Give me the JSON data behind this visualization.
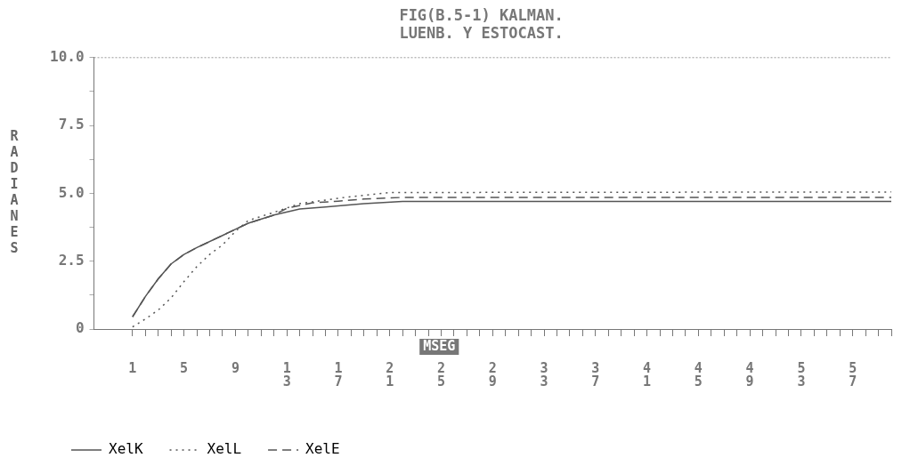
{
  "chart_data": {
    "type": "line",
    "title": "FIG(B.5-1) KALMAN.",
    "subtitle": "LUENB. Y ESTOCAST.",
    "xlabel": "MSEG",
    "ylabel": "RADIANES",
    "series": [
      {
        "name": "XelK",
        "color": "#555555",
        "line_style": "solid",
        "x": [
          1,
          2,
          3,
          4,
          5,
          6,
          8,
          10,
          12,
          14,
          16,
          19,
          22,
          60
        ],
        "values": [
          0.45,
          1.2,
          1.85,
          2.4,
          2.75,
          3.0,
          3.45,
          3.9,
          4.2,
          4.42,
          4.5,
          4.62,
          4.7,
          4.7
        ]
      },
      {
        "name": "XelL",
        "color": "#555555",
        "line_style": "dotted",
        "x": [
          1,
          2,
          3,
          4,
          5,
          6,
          7,
          8,
          9,
          10,
          12,
          14,
          17,
          19,
          21,
          60
        ],
        "values": [
          0.08,
          0.37,
          0.7,
          1.15,
          1.75,
          2.3,
          2.75,
          3.1,
          3.6,
          4.0,
          4.3,
          4.62,
          4.82,
          4.93,
          5.03,
          5.05
        ]
      },
      {
        "name": "XelE",
        "color": "#555555",
        "line_style": "dashed",
        "x": [
          1,
          2,
          3,
          4,
          5,
          6,
          8,
          10,
          12,
          13,
          15,
          17,
          19,
          22,
          60
        ],
        "values": [
          0.45,
          1.2,
          1.85,
          2.4,
          2.75,
          3.0,
          3.45,
          3.9,
          4.2,
          4.45,
          4.65,
          4.71,
          4.79,
          4.85,
          4.85
        ]
      }
    ],
    "xlim": [
      -2,
      60
    ],
    "xticks": [
      {
        "value": 1,
        "label": "1"
      },
      {
        "value": 2,
        "label": null
      },
      {
        "value": 3,
        "label": null
      },
      {
        "value": 4,
        "label": null
      },
      {
        "value": 5,
        "label": "5"
      },
      {
        "value": 6,
        "label": null
      },
      {
        "value": 7,
        "label": null
      },
      {
        "value": 8,
        "label": null
      },
      {
        "value": 9,
        "label": "9"
      },
      {
        "value": 10,
        "label": null
      },
      {
        "value": 11,
        "label": null
      },
      {
        "value": 12,
        "label": null
      },
      {
        "value": 13,
        "label": "13"
      },
      {
        "value": 14,
        "label": null
      },
      {
        "value": 15,
        "label": null
      },
      {
        "value": 16,
        "label": null
      },
      {
        "value": 17,
        "label": "17"
      },
      {
        "value": 18,
        "label": null
      },
      {
        "value": 19,
        "label": null
      },
      {
        "value": 20,
        "label": null
      },
      {
        "value": 21,
        "label": "21"
      },
      {
        "value": 22,
        "label": null
      },
      {
        "value": 23,
        "label": null
      },
      {
        "value": 24,
        "label": null
      },
      {
        "value": 25,
        "label": "25"
      },
      {
        "value": 26,
        "label": null
      },
      {
        "value": 27,
        "label": null
      },
      {
        "value": 28,
        "label": null
      },
      {
        "value": 29,
        "label": "29"
      },
      {
        "value": 30,
        "label": null
      },
      {
        "value": 31,
        "label": null
      },
      {
        "value": 32,
        "label": null
      },
      {
        "value": 33,
        "label": "33"
      },
      {
        "value": 34,
        "label": null
      },
      {
        "value": 35,
        "label": null
      },
      {
        "value": 36,
        "label": null
      },
      {
        "value": 37,
        "label": "37"
      },
      {
        "value": 38,
        "label": null
      },
      {
        "value": 39,
        "label": null
      },
      {
        "value": 40,
        "label": null
      },
      {
        "value": 41,
        "label": "41"
      },
      {
        "value": 42,
        "label": null
      },
      {
        "value": 43,
        "label": null
      },
      {
        "value": 44,
        "label": null
      },
      {
        "value": 45,
        "label": "45"
      },
      {
        "value": 46,
        "label": null
      },
      {
        "value": 47,
        "label": null
      },
      {
        "value": 48,
        "label": null
      },
      {
        "value": 49,
        "label": "49"
      },
      {
        "value": 50,
        "label": null
      },
      {
        "value": 51,
        "label": null
      },
      {
        "value": 52,
        "label": null
      },
      {
        "value": 53,
        "label": "53"
      },
      {
        "value": 54,
        "label": null
      },
      {
        "value": 55,
        "label": null
      },
      {
        "value": 56,
        "label": null
      },
      {
        "value": 57,
        "label": "57"
      },
      {
        "value": 58,
        "label": null
      },
      {
        "value": 59,
        "label": null
      },
      {
        "value": 60,
        "label": null
      }
    ],
    "ylim": [
      0,
      10
    ],
    "yticks": [
      {
        "value": 0,
        "label": "0"
      },
      {
        "value": 1.25,
        "label": null
      },
      {
        "value": 2.5,
        "label": "2.5"
      },
      {
        "value": 3.75,
        "label": null
      },
      {
        "value": 5,
        "label": "5.0"
      },
      {
        "value": 6.25,
        "label": null
      },
      {
        "value": 7.5,
        "label": "7.5"
      },
      {
        "value": 8.75,
        "label": null
      },
      {
        "value": 10,
        "label": "10.0"
      }
    ],
    "grid": false,
    "legend": "bottom",
    "marker": "none"
  }
}
